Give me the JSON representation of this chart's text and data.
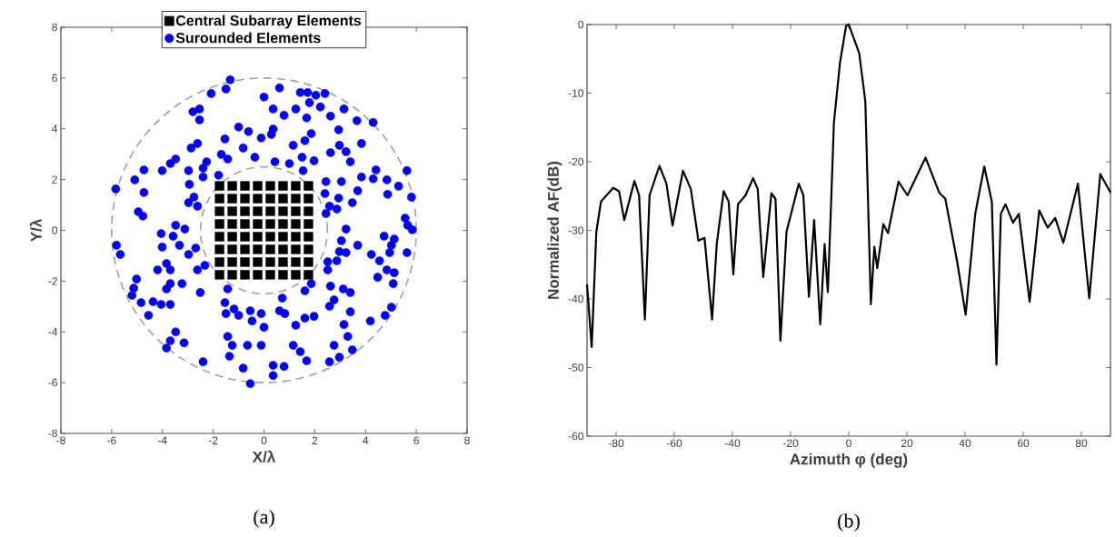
{
  "chart_data": [
    {
      "type": "scatter",
      "xlabel": "X/λ",
      "ylabel": "Y/λ",
      "xlim": [
        -8,
        8
      ],
      "ylim": [
        -8,
        8
      ],
      "xticks": [
        -8,
        -6,
        -4,
        -2,
        0,
        2,
        4,
        6,
        8
      ],
      "yticks": [
        -8,
        -6,
        -4,
        -2,
        0,
        2,
        4,
        6,
        8
      ],
      "legend": "top",
      "annotations": [
        "(a)"
      ],
      "series": [
        {
          "name": "Central Subarray Elements",
          "color": "#000000",
          "marker": "square",
          "x": [
            -1.75,
            -1.25,
            -0.75,
            -0.25,
            0.25,
            0.75,
            1.25,
            1.75,
            -1.75,
            -1.25,
            -0.75,
            -0.25,
            0.25,
            0.75,
            1.25,
            1.75,
            -1.75,
            -1.25,
            -0.75,
            -0.25,
            0.25,
            0.75,
            1.25,
            1.75,
            -1.75,
            -1.25,
            -0.75,
            -0.25,
            0.25,
            0.75,
            1.25,
            1.75,
            -1.75,
            -1.25,
            -0.75,
            -0.25,
            0.25,
            0.75,
            1.25,
            1.75,
            -1.75,
            -1.25,
            -0.75,
            -0.25,
            0.25,
            0.75,
            1.25,
            1.75,
            -1.75,
            -1.25,
            -0.75,
            -0.25,
            0.25,
            0.75,
            1.25,
            1.75,
            -1.75,
            -1.25,
            -0.75,
            -0.25,
            0.25,
            0.75,
            1.25,
            1.75
          ],
          "values": [
            1.75,
            1.75,
            1.75,
            1.75,
            1.75,
            1.75,
            1.75,
            1.75,
            1.25,
            1.25,
            1.25,
            1.25,
            1.25,
            1.25,
            1.25,
            1.25,
            0.75,
            0.75,
            0.75,
            0.75,
            0.75,
            0.75,
            0.75,
            0.75,
            0.25,
            0.25,
            0.25,
            0.25,
            0.25,
            0.25,
            0.25,
            0.25,
            -0.25,
            -0.25,
            -0.25,
            -0.25,
            -0.25,
            -0.25,
            -0.25,
            -0.25,
            -0.75,
            -0.75,
            -0.75,
            -0.75,
            -0.75,
            -0.75,
            -0.75,
            -0.75,
            -1.25,
            -1.25,
            -1.25,
            -1.25,
            -1.25,
            -1.25,
            -1.25,
            -1.25,
            -1.75,
            -1.75,
            -1.75,
            -1.75,
            -1.75,
            -1.75,
            -1.75,
            -1.75
          ]
        },
        {
          "name": "Surounded Elements",
          "color": "#0000ff",
          "marker": "circle",
          "x": [
            -1.33,
            -1.5,
            -2.08,
            -2.8,
            -2.54,
            -2.54,
            -1.0,
            -0.61,
            -0.11,
            -1.54,
            -2.62,
            -2.87,
            -0.82,
            -1.68,
            -1.43,
            -0.36,
            -3.48,
            -3.69,
            -2.26,
            -2.4,
            -4.73,
            -4.01,
            -2.97,
            -5.09,
            -2.4,
            -1.79,
            -2.94,
            -5.84,
            -4.73,
            -2.76,
            -2.97,
            -2.62,
            -4.95,
            -4.77,
            -3.48,
            -3.12,
            -4.05,
            -3.58,
            -5.81,
            -5.66,
            -4.01,
            -3.33,
            -2.97,
            -2.69,
            -4.19,
            -3.69,
            -3.84,
            -2.62,
            -2.33,
            -5.02,
            -5.13,
            -5.2,
            -4.84,
            -4.55,
            -4.37,
            -4.05,
            -3.69,
            -3.69,
            -3.23,
            -3.84,
            -2.51,
            -1.43,
            -1.54,
            -1.18,
            -1.0,
            -1.5,
            -0.54,
            -0.47,
            -0.11,
            -3.48,
            -3.69,
            -3.15,
            -3.84,
            -1.43,
            -1.25,
            -1.36,
            -0.65,
            -0.11,
            -2.4,
            -0.82,
            -0.54,
            0.61,
            0,
            1.43,
            1.72,
            2.04,
            2.4,
            1.79,
            0.36,
            0.79,
            1.25,
            2.22,
            3.15,
            1.68,
            2.62,
            3.66,
            4.3,
            0.36,
            0.29,
            1.86,
            1.61,
            2.94,
            1.15,
            3.84,
            2.62,
            2.97,
            3.23,
            3.4,
            1.5,
            1.97,
            0.43,
            1.0,
            1.54,
            4.41,
            3.84,
            4.3,
            4.84,
            5.63,
            5.3,
            2.44,
            3.05,
            3.69,
            4.87,
            5.81,
            2.4,
            2.94,
            3.48,
            2.58,
            2.87,
            2.44,
            5.56,
            5.66,
            5.84,
            3.23,
            4.73,
            5.13,
            3.05,
            3.69,
            5.02,
            2.97,
            3.23,
            4.23,
            4.55,
            4.95,
            5.63,
            2.51,
            2.87,
            2.51,
            4.84,
            5.13,
            4.48,
            5.09,
            1.86,
            2.62,
            0.72,
            1.61,
            3.12,
            3.4,
            2.76,
            2.58,
            0.61,
            0.82,
            1.61,
            1.97,
            1.25,
            0,
            3.4,
            3.15,
            4.19,
            4.77,
            5.02,
            3.3,
            1.15,
            1.43,
            1.68,
            2.76,
            3.48,
            2.97,
            2.58,
            0.36,
            0.79,
            0.36
          ],
          "values": [
            5.93,
            5.57,
            5.39,
            4.67,
            4.78,
            4.35,
            4.07,
            3.89,
            3.64,
            3.6,
            3.42,
            3.24,
            3.24,
            2.99,
            2.81,
            2.88,
            2.81,
            2.63,
            2.7,
            2.45,
            2.38,
            2.35,
            2.35,
            1.99,
            2.1,
            2.17,
            1.81,
            1.63,
            1.49,
            1.31,
            1.09,
            0.95,
            0.73,
            0.56,
            0.2,
            0.05,
            -0.13,
            -0.23,
            -0.59,
            -0.95,
            -0.66,
            -0.59,
            -0.95,
            -0.7,
            -1.56,
            -1.56,
            -1.31,
            -1.56,
            -1.38,
            -1.92,
            -2.28,
            -2.56,
            -2.85,
            -3.35,
            -2.81,
            -2.92,
            -2.92,
            -2.1,
            -2.1,
            -2.31,
            -2.45,
            -2.31,
            -2.85,
            -3.1,
            -3.35,
            -3.28,
            -3.17,
            -3.57,
            -3.28,
            -4.0,
            -4.35,
            -4.43,
            -4.64,
            -4.18,
            -4.53,
            -4.96,
            -4.53,
            -4.53,
            -5.18,
            -5.43,
            -6.04,
            5.61,
            5.25,
            5.43,
            5.43,
            5.32,
            5.39,
            5.03,
            4.78,
            4.53,
            4.78,
            4.86,
            4.78,
            4.43,
            4.5,
            4.32,
            4.25,
            3.99,
            3.78,
            3.81,
            3.53,
            3.96,
            3.35,
            3.42,
            3.06,
            3.35,
            3.1,
            2.7,
            2.88,
            2.74,
            2.7,
            2.63,
            2.35,
            2.38,
            2.1,
            2.03,
            1.99,
            2.35,
            1.74,
            1.92,
            1.92,
            1.56,
            1.42,
            1.31,
            1.45,
            1.27,
            1.09,
            0.95,
            0.84,
            0.66,
            0.48,
            0.2,
            0.02,
            0.05,
            -0.23,
            -0.34,
            -0.41,
            -0.59,
            -0.59,
            -0.84,
            -0.88,
            -0.95,
            -1.2,
            -0.88,
            -0.88,
            -1.24,
            -1.2,
            -1.56,
            -1.56,
            -1.67,
            -1.85,
            -2.1,
            -2.1,
            -2.2,
            -2.67,
            -2.38,
            -2.31,
            -2.45,
            -2.74,
            -2.99,
            -3.17,
            -3.28,
            -3.46,
            -3.39,
            -3.74,
            -3.82,
            -3.21,
            -3.71,
            -3.57,
            -3.35,
            -3.03,
            -4.18,
            -4.53,
            -4.78,
            -5.14,
            -4.53,
            -4.71,
            -5.0,
            -5.18,
            -5.32,
            -5.36,
            -5.72
          ]
        }
      ]
    },
    {
      "type": "line",
      "xlabel": "Azimuth φ (deg)",
      "ylabel": "Normalized AF(dB)",
      "xlim": [
        -90,
        90
      ],
      "ylim": [
        -60,
        0
      ],
      "xticks": [
        -80,
        -60,
        -40,
        -20,
        0,
        20,
        40,
        60,
        80
      ],
      "yticks": [
        -60,
        -50,
        -40,
        -30,
        -20,
        -10,
        0
      ],
      "annotations": [
        "(b)"
      ],
      "series": [
        {
          "color": "#000000",
          "x": [
            -90,
            -88.4,
            -86.8,
            -85.2,
            -81,
            -79,
            -77.2,
            -73.7,
            -72.1,
            -70.1,
            -68.5,
            -65.1,
            -62.7,
            -60.6,
            -57,
            -54.3,
            -51.7,
            -49.6,
            -47,
            -45.4,
            -43,
            -41.3,
            -39.7,
            -38.1,
            -35.5,
            -32.9,
            -31.3,
            -29.4,
            -26.6,
            -25.2,
            -23.5,
            -21.4,
            -17.2,
            -15.6,
            -13.7,
            -11.9,
            -9.8,
            -8.3,
            -7.2,
            -6.2,
            -5.1,
            -3,
            -0.9,
            0,
            3.6,
            5.7,
            7.6,
            8.8,
            9.8,
            11.9,
            13.5,
            17.1,
            20.2,
            26.4,
            31.1,
            33.2,
            37.3,
            40.2,
            43.5,
            46.6,
            49.2,
            50.8,
            52.3,
            53.9,
            56.5,
            58.5,
            62.2,
            65.5,
            68.4,
            71,
            73.8,
            78.8,
            82.7,
            86.5,
            90
          ],
          "values": [
            -37.9,
            -47,
            -30.2,
            -25.8,
            -23.8,
            -24.3,
            -28.5,
            -22.8,
            -24.9,
            -43,
            -24.9,
            -20.6,
            -23.2,
            -29.3,
            -21.3,
            -24,
            -31.5,
            -31.1,
            -43,
            -32,
            -24.3,
            -25.8,
            -36.4,
            -26.2,
            -24.9,
            -22.4,
            -24,
            -36.8,
            -24.6,
            -25.4,
            -46.1,
            -30.2,
            -23.2,
            -24.9,
            -39.7,
            -28.5,
            -43.7,
            -32,
            -39,
            -27.6,
            -14.3,
            -5.5,
            -0.2,
            0,
            -4.2,
            -11.2,
            -40.8,
            -32.4,
            -35.5,
            -29.1,
            -30.4,
            -22.9,
            -24.9,
            -19.4,
            -24.5,
            -25.4,
            -34.6,
            -42.3,
            -27.6,
            -20.7,
            -25.8,
            -49.6,
            -27.6,
            -26.2,
            -28.9,
            -27.6,
            -40.4,
            -27.1,
            -29.6,
            -28.2,
            -31.8,
            -23.2,
            -39.9,
            -21.8,
            -24.5
          ]
        }
      ]
    }
  ]
}
